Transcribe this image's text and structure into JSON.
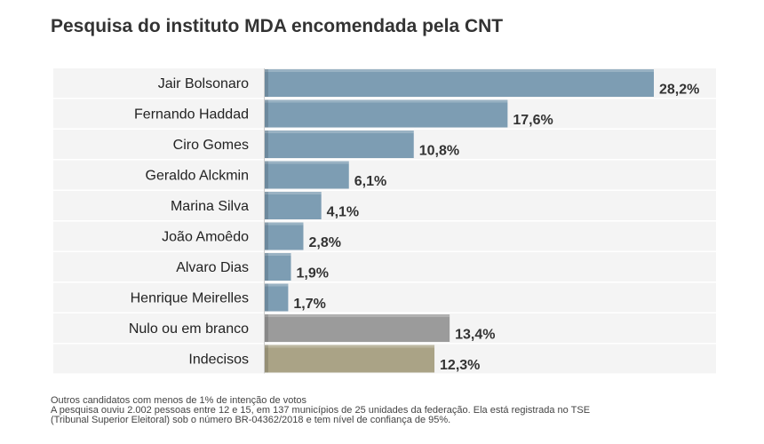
{
  "chart_data": {
    "type": "bar",
    "orientation": "horizontal",
    "title": "Pesquisa do instituto MDA encomendada pela CNT",
    "categories": [
      "Jair Bolsonaro",
      "Fernando Haddad",
      "Ciro Gomes",
      "Geraldo Alckmin",
      "Marina Silva",
      "João Amoêdo",
      "Alvaro Dias",
      "Henrique Meirelles",
      "Nulo ou em branco",
      "Indecisos"
    ],
    "values": [
      28.2,
      17.6,
      10.8,
      6.1,
      4.1,
      2.8,
      1.9,
      1.7,
      13.4,
      12.3
    ],
    "value_labels": [
      "28,2%",
      "17,6%",
      "10,8%",
      "6,1%",
      "4,1%",
      "2,8%",
      "1,9%",
      "1,7%",
      "13,4%",
      "12,3%"
    ],
    "bar_colors": [
      "#7d9db3",
      "#7d9db3",
      "#7d9db3",
      "#7d9db3",
      "#7d9db3",
      "#7d9db3",
      "#7d9db3",
      "#7d9db3",
      "#9b9b9b",
      "#aaa386"
    ],
    "xlim": [
      0,
      28.2
    ],
    "grid": false,
    "legend": "none"
  },
  "notes": [
    "Outros candidatos com menos de 1% de intenção de votos",
    "A pesquisa ouviu 2.002 pessoas entre 12 e 15, em 137 municípios de 25 unidades da federação. Ela está registrada no TSE",
    "(Tribunal Superior Eleitoral) sob o número BR-04362/2018 e tem nível de confiança de 95%."
  ]
}
